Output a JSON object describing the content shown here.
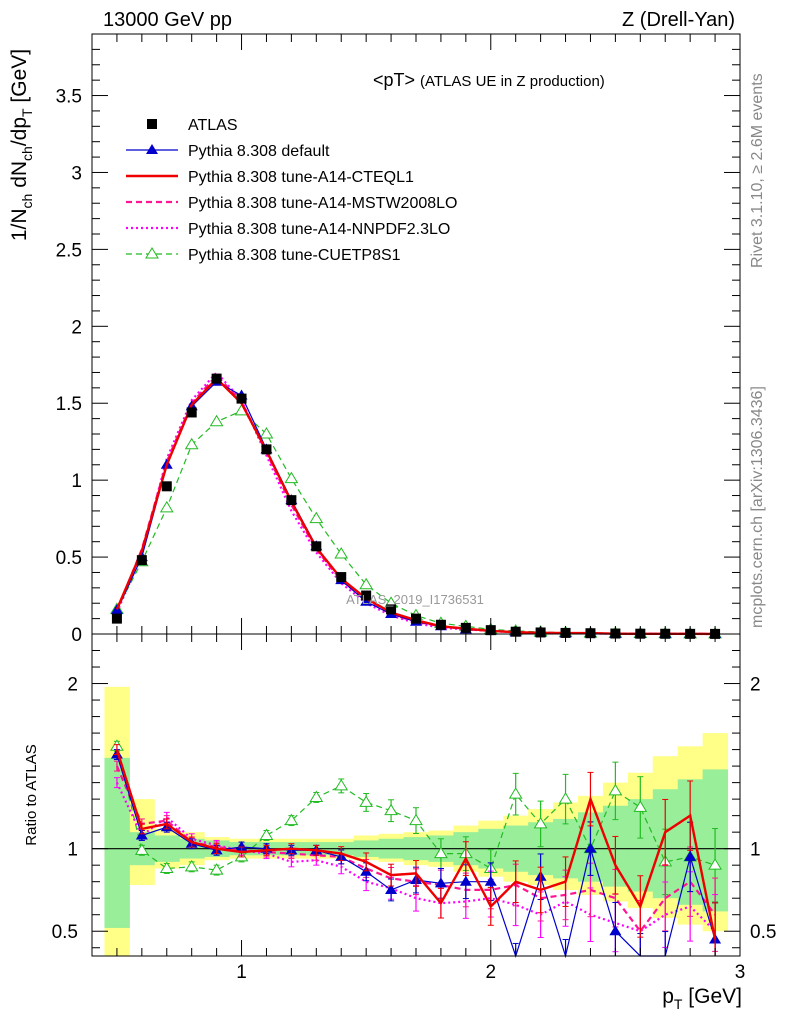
{
  "header": {
    "left": "13000 GeV pp",
    "right": "Z (Drell-Yan)"
  },
  "side_labels": {
    "rivet": "Rivet 3.1.10, ≥ 2.6M events",
    "mcplots": "mcplots.cern.ch [arXiv:1306.3436]"
  },
  "colors": {
    "atlas": "#000000",
    "default": "#0000cc",
    "cteql1": "#ee0000",
    "mstw": "#ff1493",
    "nnpdf": "#ff00ff",
    "cuetp8s1": "#22bb22",
    "band_inner": "#99ee99",
    "band_outer": "#ffff88"
  },
  "chart_data": [
    {
      "type": "scatter",
      "title_main": "<pT>",
      "title_sub": "(ATLAS UE in Z production)",
      "ylabel": "1/N_ch dN_ch/dp_T [GeV]",
      "watermark": "ATLAS_2019_I1736531",
      "xlim": [
        0.4,
        3.0
      ],
      "ylim": [
        0,
        3.9
      ],
      "yticks": [
        0,
        0.5,
        1,
        1.5,
        2,
        2.5,
        3,
        3.5
      ],
      "ytick_labels": [
        "0",
        "0.5",
        "1",
        "1.5",
        "2",
        "2.5",
        "3",
        "3.5"
      ],
      "legend_position": "top-left",
      "x": [
        0.5,
        0.6,
        0.7,
        0.8,
        0.9,
        1.0,
        1.1,
        1.2,
        1.3,
        1.4,
        1.5,
        1.6,
        1.7,
        1.8,
        1.9,
        2.0,
        2.1,
        2.2,
        2.3,
        2.4,
        2.5,
        2.6,
        2.7,
        2.8,
        2.9
      ],
      "series": [
        {
          "name": "ATLAS",
          "key": "atlas",
          "values": [
            0.1,
            0.48,
            0.96,
            1.44,
            1.66,
            1.53,
            1.2,
            0.87,
            0.57,
            0.37,
            0.25,
            0.16,
            0.1,
            0.06,
            0.04,
            0.025,
            0.015,
            0.01,
            0.007,
            0.005,
            0.003,
            0.002,
            0.0015,
            0.001,
            0.0007
          ]
        },
        {
          "name": "Pythia 8.308 default",
          "key": "default",
          "values": [
            0.155,
            0.5,
            1.1,
            1.48,
            1.64,
            1.55,
            1.2,
            0.87,
            0.57,
            0.35,
            0.21,
            0.13,
            0.08,
            0.05,
            0.03,
            0.02,
            0.01,
            0.008,
            0.005,
            0.005,
            0.002,
            0.001,
            0.001,
            0.001,
            0.0003
          ]
        },
        {
          "name": "Pythia 8.308 tune-A14-CTEQL1",
          "key": "cteql1",
          "values": [
            0.16,
            0.54,
            1.1,
            1.49,
            1.66,
            1.5,
            1.19,
            0.86,
            0.56,
            0.36,
            0.23,
            0.14,
            0.09,
            0.05,
            0.035,
            0.02,
            0.012,
            0.008,
            0.006,
            0.006,
            0.002,
            0.0015,
            0.001,
            0.0012,
            0.0005
          ]
        },
        {
          "name": "Pythia 8.308 tune-A14-MSTW2008LO",
          "key": "mstw",
          "values": [
            0.15,
            0.55,
            1.12,
            1.5,
            1.68,
            1.51,
            1.18,
            0.84,
            0.55,
            0.35,
            0.22,
            0.13,
            0.08,
            0.05,
            0.03,
            0.02,
            0.012,
            0.007,
            0.005,
            0.004,
            0.002,
            0.001,
            0.001,
            0.0008,
            0.0004
          ]
        },
        {
          "name": "Pythia 8.308 tune-A14-NNPDF2.3LO",
          "key": "nnpdf",
          "values": [
            0.14,
            0.52,
            1.14,
            1.52,
            1.7,
            1.52,
            1.16,
            0.8,
            0.53,
            0.33,
            0.2,
            0.12,
            0.07,
            0.04,
            0.03,
            0.02,
            0.01,
            0.007,
            0.005,
            0.004,
            0.002,
            0.001,
            0.001,
            0.0007,
            0.0003
          ]
        },
        {
          "name": "Pythia 8.308 tune-CUETP8S1",
          "key": "cuetp8s1",
          "values": [
            0.16,
            0.47,
            0.82,
            1.23,
            1.38,
            1.45,
            1.3,
            1.01,
            0.75,
            0.52,
            0.32,
            0.2,
            0.12,
            0.07,
            0.05,
            0.03,
            0.02,
            0.013,
            0.009,
            0.006,
            0.004,
            0.003,
            0.002,
            0.0012,
            0.0007
          ]
        }
      ]
    },
    {
      "type": "line",
      "ylabel": "Ratio to ATLAS",
      "xlabel": "p_T [GeV]",
      "xlim": [
        0.4,
        3.0
      ],
      "ylim": [
        0.35,
        2.3
      ],
      "xticks": [
        1,
        2,
        3
      ],
      "xtick_labels": [
        "1",
        "2",
        "3"
      ],
      "yticks": [
        0.5,
        1,
        2
      ],
      "ytick_labels": [
        "0.5",
        "1",
        "2"
      ],
      "reference": 1,
      "x": [
        0.5,
        0.6,
        0.7,
        0.8,
        0.9,
        1.0,
        1.1,
        1.2,
        1.3,
        1.4,
        1.5,
        1.6,
        1.7,
        1.8,
        1.9,
        2.0,
        2.1,
        2.2,
        2.3,
        2.4,
        2.5,
        2.6,
        2.7,
        2.8,
        2.9
      ],
      "band_inner": [
        [
          0.52,
          1.55
        ],
        [
          0.9,
          1.1
        ],
        [
          0.92,
          1.08
        ],
        [
          0.94,
          1.06
        ],
        [
          0.95,
          1.05
        ],
        [
          0.96,
          1.04
        ],
        [
          0.96,
          1.04
        ],
        [
          0.96,
          1.04
        ],
        [
          0.96,
          1.04
        ],
        [
          0.96,
          1.04
        ],
        [
          0.95,
          1.05
        ],
        [
          0.94,
          1.06
        ],
        [
          0.93,
          1.07
        ],
        [
          0.92,
          1.08
        ],
        [
          0.9,
          1.1
        ],
        [
          0.88,
          1.12
        ],
        [
          0.86,
          1.14
        ],
        [
          0.84,
          1.16
        ],
        [
          0.82,
          1.18
        ],
        [
          0.8,
          1.22
        ],
        [
          0.77,
          1.26
        ],
        [
          0.74,
          1.3
        ],
        [
          0.7,
          1.36
        ],
        [
          0.66,
          1.42
        ],
        [
          0.62,
          1.48
        ]
      ],
      "band_outer": [
        [
          0.35,
          1.98
        ],
        [
          0.78,
          1.3
        ],
        [
          0.88,
          1.12
        ],
        [
          0.9,
          1.1
        ],
        [
          0.93,
          1.07
        ],
        [
          0.94,
          1.06
        ],
        [
          0.94,
          1.06
        ],
        [
          0.94,
          1.06
        ],
        [
          0.94,
          1.06
        ],
        [
          0.94,
          1.06
        ],
        [
          0.93,
          1.08
        ],
        [
          0.92,
          1.09
        ],
        [
          0.9,
          1.1
        ],
        [
          0.89,
          1.11
        ],
        [
          0.86,
          1.14
        ],
        [
          0.83,
          1.17
        ],
        [
          0.8,
          1.2
        ],
        [
          0.78,
          1.24
        ],
        [
          0.75,
          1.28
        ],
        [
          0.72,
          1.32
        ],
        [
          0.68,
          1.4
        ],
        [
          0.64,
          1.46
        ],
        [
          0.58,
          1.56
        ],
        [
          0.54,
          1.62
        ],
        [
          0.5,
          1.7
        ]
      ],
      "series": [
        {
          "name": "Pythia 8.308 default",
          "key": "default",
          "values": [
            1.57,
            1.08,
            1.13,
            1.03,
            0.99,
            1.01,
            1.0,
            0.99,
            0.99,
            0.95,
            0.86,
            0.75,
            0.81,
            0.79,
            0.8,
            0.8,
            0.3,
            0.83,
            0.3,
            1.0,
            0.5,
            0.3,
            0.3,
            0.95,
            0.45
          ]
        },
        {
          "name": "Pythia 8.308 tune-A14-CTEQL1",
          "key": "cteql1",
          "values": [
            1.6,
            1.12,
            1.15,
            1.04,
            1.0,
            0.98,
            0.99,
            1.0,
            0.99,
            0.97,
            0.92,
            0.84,
            0.85,
            0.67,
            0.94,
            0.65,
            0.8,
            0.75,
            0.8,
            1.3,
            0.9,
            0.65,
            1.1,
            1.2,
            0.45
          ]
        },
        {
          "name": "Pythia 8.308 tune-A14-MSTW2008LO",
          "key": "mstw",
          "values": [
            1.5,
            1.15,
            1.17,
            1.04,
            1.01,
            0.99,
            0.98,
            0.97,
            0.96,
            0.95,
            0.88,
            0.82,
            0.8,
            0.78,
            0.75,
            0.75,
            0.78,
            0.7,
            0.72,
            0.75,
            0.7,
            0.5,
            0.7,
            0.8,
            0.6
          ]
        },
        {
          "name": "Pythia 8.308 tune-A14-NNPDF2.3LO",
          "key": "nnpdf",
          "values": [
            1.4,
            1.08,
            1.19,
            1.06,
            1.02,
            0.99,
            0.97,
            0.92,
            0.93,
            0.89,
            0.8,
            0.76,
            0.7,
            0.67,
            0.68,
            0.7,
            0.66,
            0.6,
            0.68,
            0.6,
            0.55,
            0.5,
            0.6,
            0.65,
            0.5
          ]
        },
        {
          "name": "Pythia 8.308 tune-CUETP8S1",
          "key": "cuetp8s1",
          "values": [
            1.62,
            0.99,
            0.88,
            0.89,
            0.87,
            0.95,
            1.08,
            1.17,
            1.31,
            1.38,
            1.28,
            1.23,
            1.17,
            0.97,
            0.97,
            0.88,
            1.33,
            1.15,
            1.3,
            1.0,
            1.35,
            1.25,
            0.92,
            0.95,
            0.9
          ]
        }
      ]
    }
  ]
}
